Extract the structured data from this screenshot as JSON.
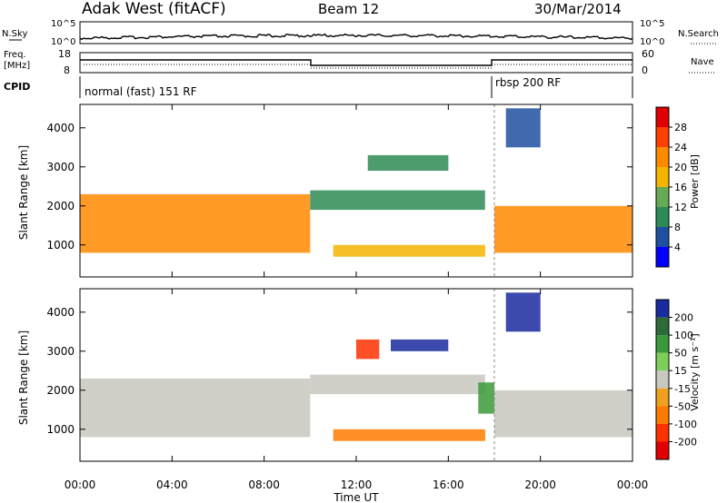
{
  "header": {
    "station": "Adak West (fitACF)",
    "beam": "Beam 12",
    "date": "30/Mar/2014"
  },
  "panels": {
    "nsky": {
      "left_label": "N.Sky",
      "right_label": "N.Search",
      "ticks_left": [
        "10^5",
        "10^0"
      ],
      "ticks_right": [
        "10^5",
        "10^0"
      ]
    },
    "freq": {
      "left_label_1": "Freq.",
      "left_label_2": "[MHz]",
      "right_label": "Nave",
      "ticks_left": [
        "18",
        "8"
      ],
      "ticks_right": [
        "60",
        "0"
      ]
    },
    "cpid": {
      "label": "CPID",
      "modes": [
        {
          "name": "normal (fast) 151 RF",
          "start": "00:00",
          "end": "18:00"
        },
        {
          "name": "rbsp 200 RF",
          "start": "18:00",
          "end": "24:00"
        }
      ]
    },
    "power": {
      "ylabel": "Slant Range [km]",
      "colorbar_label": "Power [dB]",
      "colorbar_ticks": [
        "28",
        "24",
        "20",
        "16",
        "12",
        "8",
        "4"
      ],
      "colors": [
        "#e00000",
        "#ff4000",
        "#ff8a00",
        "#f5b400",
        "#66aa55",
        "#2e8b57",
        "#1f4fa0",
        "#0000ff"
      ]
    },
    "velocity": {
      "ylabel": "Slant Range [km]",
      "colorbar_label": "Velocity [m s⁻¹]",
      "colorbar_ticks": [
        "200",
        "100",
        "50",
        "15",
        "-15",
        "-50",
        "-100",
        "-200"
      ],
      "colors": [
        "#1a2aa0",
        "#2f6a3a",
        "#3a9a3a",
        "#7ccf5a",
        "#c8c8c0",
        "#f0a020",
        "#ff7a00",
        "#ff3000",
        "#e00000"
      ]
    }
  },
  "axes": {
    "x_ticks": [
      "00:00",
      "04:00",
      "08:00",
      "12:00",
      "16:00",
      "20:00",
      "00:00"
    ],
    "xlabel": "Time UT",
    "y_ticks": [
      "4000",
      "3000",
      "2000",
      "1000"
    ]
  },
  "chart_data": {
    "type": "heatmap",
    "xlabel": "Time UT",
    "ylabel": "Slant Range [km]",
    "x_range": [
      "00:00",
      "24:00"
    ],
    "ylim": [
      180,
      4600
    ],
    "series": [
      {
        "name": "Power [dB]",
        "bands": [
          {
            "start_hour": 0,
            "end_hour": 10,
            "range_km": [
              800,
              2300
            ],
            "value": 24
          },
          {
            "start_hour": 10,
            "end_hour": 17.6,
            "range_km": [
              1900,
              2400
            ],
            "value": 12
          },
          {
            "start_hour": 11,
            "end_hour": 17.6,
            "range_km": [
              700,
              1000
            ],
            "value": 20
          },
          {
            "start_hour": 12.5,
            "end_hour": 16,
            "range_km": [
              2900,
              3300
            ],
            "value": 10
          },
          {
            "start_hour": 18,
            "end_hour": 24,
            "range_km": [
              800,
              2000
            ],
            "value": 24
          },
          {
            "start_hour": 18.5,
            "end_hour": 20,
            "range_km": [
              3500,
              4500
            ],
            "value": 8
          }
        ]
      },
      {
        "name": "Velocity [m s⁻¹]",
        "bands": [
          {
            "start_hour": 0,
            "end_hour": 10,
            "range_km": [
              800,
              2300
            ],
            "value": 0
          },
          {
            "start_hour": 10,
            "end_hour": 17.6,
            "range_km": [
              1900,
              2400
            ],
            "value": 0
          },
          {
            "start_hour": 11,
            "end_hour": 17.6,
            "range_km": [
              700,
              1000
            ],
            "value": -60
          },
          {
            "start_hour": 12,
            "end_hour": 13,
            "range_km": [
              2800,
              3300
            ],
            "value": -200
          },
          {
            "start_hour": 13.5,
            "end_hour": 16,
            "range_km": [
              3000,
              3300
            ],
            "value": 200
          },
          {
            "start_hour": 17.3,
            "end_hour": 18,
            "range_km": [
              1400,
              2200
            ],
            "value": 60
          },
          {
            "start_hour": 18,
            "end_hour": 24,
            "range_km": [
              800,
              2000
            ],
            "value": 0
          },
          {
            "start_hour": 18.5,
            "end_hour": 20,
            "range_km": [
              3500,
              4500
            ],
            "value": 200
          }
        ]
      }
    ]
  }
}
